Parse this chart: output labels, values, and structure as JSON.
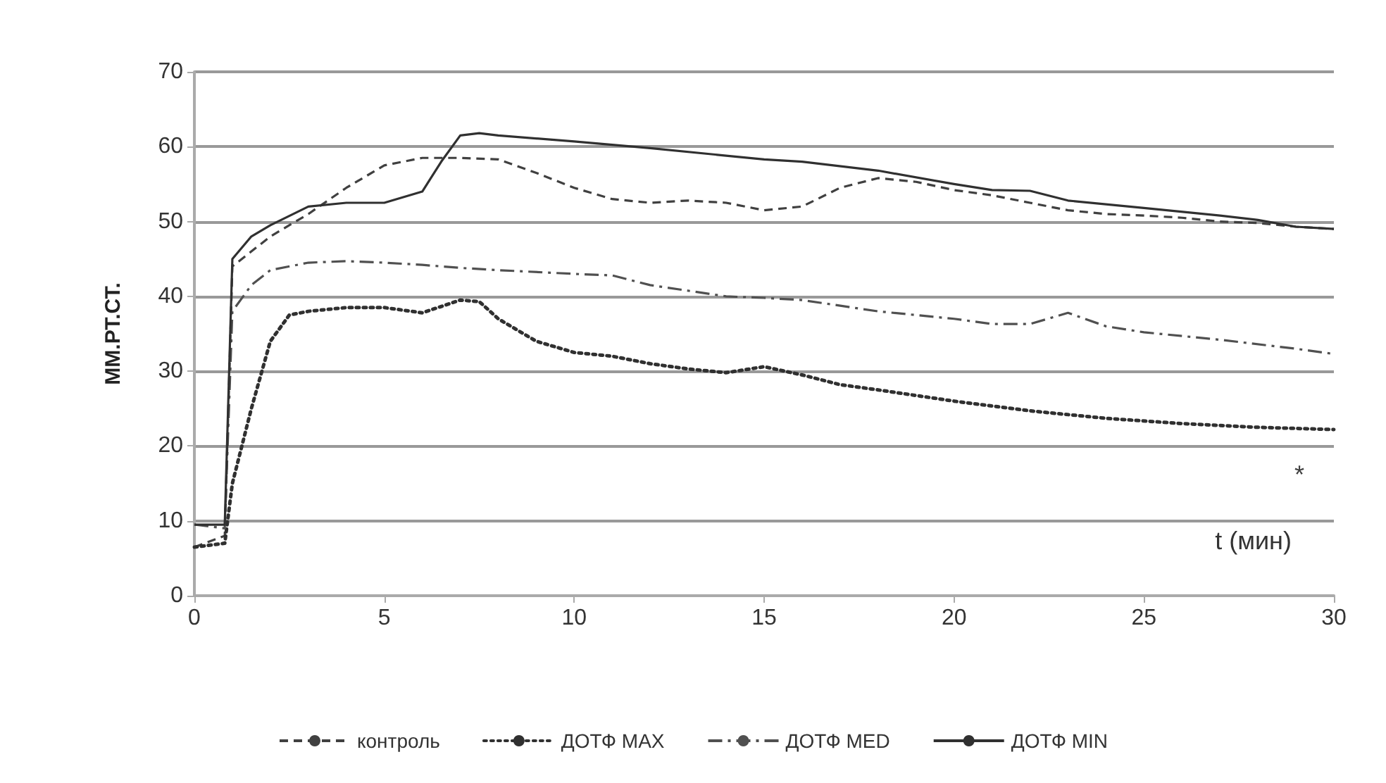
{
  "chart_data": {
    "type": "line",
    "ylabel": "ММ.РТ.СТ.",
    "xlabel": "t (мин)",
    "xlim": [
      0,
      30
    ],
    "xticks": [
      0,
      5,
      10,
      15,
      20,
      25,
      30
    ],
    "ylim": [
      0,
      70
    ],
    "yticks": [
      0,
      10,
      20,
      30,
      40,
      50,
      60,
      70
    ],
    "grid": "y",
    "legend": "bottom",
    "marker": "none",
    "annotations": [
      "*"
    ],
    "series": [
      {
        "name": "контроль",
        "color": "#404040",
        "line_style": "dashed",
        "x": [
          0,
          0.8,
          1,
          1.5,
          2,
          3,
          4,
          5,
          6,
          7,
          8,
          9,
          10,
          11,
          12,
          13,
          14,
          15,
          16,
          17,
          18,
          19,
          20,
          21,
          22,
          23,
          24,
          25,
          26,
          27,
          28,
          29,
          30
        ],
        "values": [
          6.5,
          8,
          44,
          46,
          48,
          51,
          54.5,
          57.5,
          58.5,
          58.5,
          58.3,
          56.5,
          54.5,
          53,
          52.5,
          52.8,
          52.5,
          51.5,
          52,
          54.5,
          55.8,
          55.3,
          54.2,
          53.5,
          52.5,
          51.5,
          51,
          50.8,
          50.5,
          50,
          49.8,
          49.3,
          49
        ]
      },
      {
        "name": "ДОТФ MAX",
        "color": "#303030",
        "line_style": "dotted",
        "x": [
          0,
          0.8,
          1,
          1.5,
          2,
          2.5,
          3,
          4,
          5,
          6,
          7,
          7.5,
          8,
          9,
          10,
          11,
          12,
          13,
          14,
          15,
          16,
          17,
          18,
          20,
          22,
          24,
          26,
          28,
          30
        ],
        "values": [
          6.5,
          7,
          15,
          25,
          34,
          37.5,
          38,
          38.5,
          38.5,
          37.8,
          39.5,
          39.3,
          37,
          34,
          32.5,
          32,
          31,
          30.3,
          29.8,
          30.6,
          29.5,
          28.2,
          27.5,
          26,
          24.7,
          23.7,
          23,
          22.5,
          22.2
        ]
      },
      {
        "name": "ДОТФ MED",
        "color": "#505050",
        "line_style": "dashdot",
        "x": [
          0,
          0.8,
          1,
          1.5,
          2,
          3,
          4,
          5,
          6,
          7,
          8,
          10,
          11,
          12,
          14,
          15,
          16,
          18,
          20,
          21,
          22,
          23,
          24,
          25,
          27,
          29,
          30
        ],
        "values": [
          9.5,
          9,
          38,
          41.5,
          43.5,
          44.5,
          44.7,
          44.5,
          44.2,
          43.8,
          43.5,
          43,
          42.8,
          41.5,
          40,
          39.8,
          39.5,
          38,
          37,
          36.3,
          36.3,
          37.8,
          36,
          35.2,
          34.2,
          33,
          32.3
        ]
      },
      {
        "name": "ДОТФ MIN",
        "color": "#303030",
        "line_style": "solid",
        "x": [
          0,
          0.8,
          1,
          1.5,
          2,
          3,
          4,
          5,
          6,
          6.5,
          7,
          7.5,
          8,
          10,
          12,
          14,
          15,
          16,
          18,
          20,
          21,
          22,
          23,
          25,
          27,
          28,
          29,
          30
        ],
        "values": [
          9.5,
          9.5,
          45,
          48,
          49.5,
          52,
          52.5,
          52.5,
          54,
          58,
          61.5,
          61.8,
          61.5,
          60.7,
          59.8,
          58.8,
          58.3,
          58,
          56.8,
          55,
          54.2,
          54.1,
          52.8,
          51.8,
          50.8,
          50.2,
          49.3,
          49
        ]
      }
    ]
  }
}
